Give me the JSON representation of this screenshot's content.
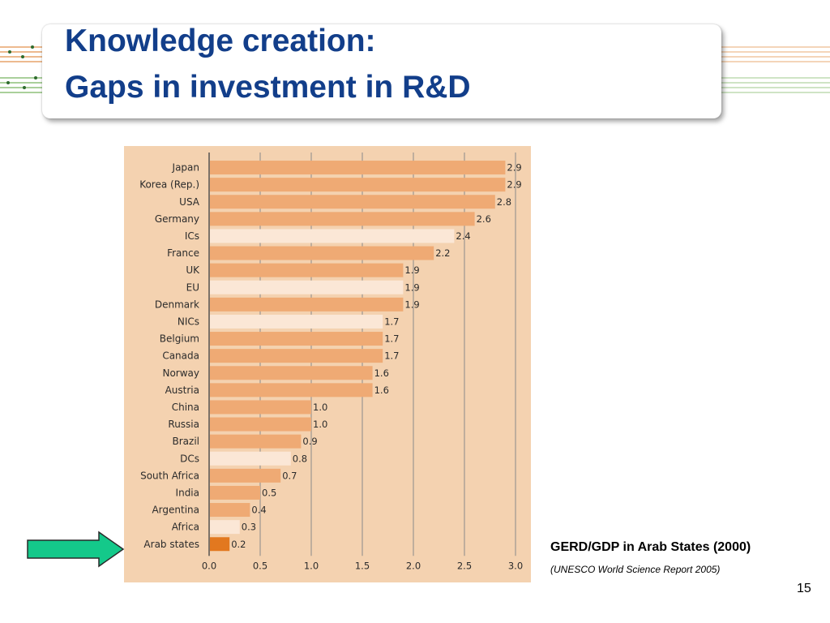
{
  "slide": {
    "title_line1": "Knowledge creation:",
    "title_line2": "Gaps in investment in R&D",
    "caption": "GERD/GDP in Arab States (2000)",
    "source": "(UNESCO World Science Report 2005)",
    "page_number": "15"
  },
  "colors": {
    "title": "#123e8a",
    "chart_background": "#f4d2b0",
    "bar_country": "#efaa74",
    "bar_group": "#fbe7d6",
    "bar_highlight": "#e2781f",
    "arrow": "#14c98a"
  },
  "chart_data": {
    "type": "bar",
    "orientation": "horizontal",
    "title": "",
    "xlabel": "",
    "ylabel": "",
    "xlim": [
      0.0,
      3.0
    ],
    "x_ticks": [
      "0.0",
      "0.5",
      "1.0",
      "1.5",
      "2.0",
      "2.5",
      "3.0"
    ],
    "grid": "vertical",
    "categories": [
      "Japan",
      "Korea (Rep.)",
      "USA",
      "Germany",
      "ICs",
      "France",
      "UK",
      "EU",
      "Denmark",
      "NICs",
      "Belgium",
      "Canada",
      "Norway",
      "Austria",
      "China",
      "Russia",
      "Brazil",
      "DCs",
      "South Africa",
      "India",
      "Argentina",
      "Africa",
      "Arab states"
    ],
    "values": [
      2.9,
      2.9,
      2.8,
      2.6,
      2.4,
      2.2,
      1.9,
      1.9,
      1.9,
      1.7,
      1.7,
      1.7,
      1.6,
      1.6,
      1.0,
      1.0,
      0.9,
      0.8,
      0.7,
      0.5,
      0.4,
      0.3,
      0.2
    ],
    "value_labels": [
      "2.9",
      "2.9",
      "2.8",
      "2.6",
      "2.4",
      "2.2",
      "1.9",
      "1.9",
      "1.9",
      "1.7",
      "1.7",
      "1.7",
      "1.6",
      "1.6",
      "1.0",
      "1.0",
      "0.9",
      "0.8",
      "0.7",
      "0.5",
      "0.4",
      "0.3",
      "0.2"
    ],
    "bar_kind": [
      "country",
      "country",
      "country",
      "country",
      "group",
      "country",
      "country",
      "group",
      "country",
      "group",
      "country",
      "country",
      "country",
      "country",
      "country",
      "country",
      "country",
      "group",
      "country",
      "country",
      "country",
      "group",
      "highlight"
    ]
  }
}
